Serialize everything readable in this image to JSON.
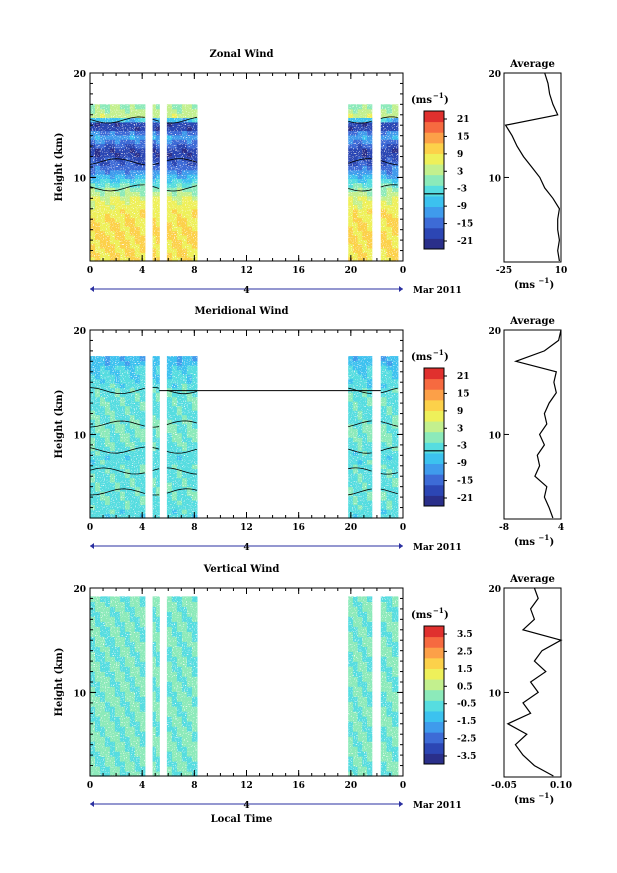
{
  "colors": {
    "bar": [
      "#2a2f8a",
      "#2c46b4",
      "#3d6bd6",
      "#3f9bec",
      "#3cc2ef",
      "#56dde0",
      "#8ceaba",
      "#c3f08e",
      "#eef05a",
      "#fcd14a",
      "#fca048",
      "#f66a40",
      "#e0302e"
    ],
    "contour": "#000000",
    "axis": "#000000"
  },
  "x_ticks": [
    "0",
    "4",
    "8",
    "12",
    "16",
    "20",
    "0"
  ],
  "date": {
    "day": "4",
    "month_year": "Mar 2011"
  },
  "x_label": "Local Time",
  "panels": [
    {
      "title": "Zonal Wind",
      "ylabel": "Height (km)",
      "y_ticks": [
        "10",
        "20"
      ],
      "unit": "(ms",
      "unit_sup": "−1",
      "unit_close": ")",
      "colorbar_labels": [
        "21",
        "15",
        "9",
        "3",
        "-3",
        "-9",
        "-15",
        "-21"
      ],
      "avg": {
        "title": "Average",
        "x_ticks": [
          "-25",
          "10"
        ],
        "unit": "(ms",
        "unit_sup": "−1",
        "unit_close": ")",
        "y_ticks": [
          "10",
          "20"
        ]
      }
    },
    {
      "title": "Meridional Wind",
      "ylabel": "Height (km)",
      "y_ticks": [
        "10",
        "20"
      ],
      "unit": "(ms",
      "unit_sup": "−1",
      "unit_close": ")",
      "colorbar_labels": [
        "21",
        "15",
        "9",
        "3",
        "-3",
        "-9",
        "-15",
        "-21"
      ],
      "avg": {
        "title": "Average",
        "x_ticks": [
          "-8",
          "4"
        ],
        "unit": "(ms",
        "unit_sup": "−1",
        "unit_close": ")",
        "y_ticks": [
          "10",
          "20"
        ]
      }
    },
    {
      "title": "Vertical Wind",
      "ylabel": "Height (km)",
      "y_ticks": [
        "10",
        "20"
      ],
      "unit": "(ms",
      "unit_sup": "−1",
      "unit_close": ")",
      "colorbar_labels": [
        "3.5",
        "2.5",
        "1.5",
        "0.5",
        "-0.5",
        "-1.5",
        "-2.5",
        "-3.5"
      ],
      "avg": {
        "title": "Average",
        "x_ticks": [
          "-0.05",
          "0.10"
        ],
        "unit": "(ms",
        "unit_sup": "−1",
        "unit_close": ")",
        "y_ticks": [
          "10",
          "20"
        ]
      }
    }
  ],
  "chart_data": [
    {
      "type": "heatmap",
      "title": "Zonal Wind",
      "xlabel": "Local Time",
      "ylabel": "Height (km)",
      "xlim": [
        0,
        24
      ],
      "ylim": [
        2,
        20
      ],
      "colorbar_range": [
        -24,
        24
      ],
      "data_intervals_hours": [
        [
          0,
          4.2
        ],
        [
          4.8,
          5.3
        ],
        [
          5.9,
          8.2
        ],
        [
          19.8,
          21.6
        ],
        [
          22.3,
          23.6
        ]
      ],
      "profile": {
        "height_km": [
          2,
          4,
          6,
          8,
          9,
          11,
          12.5,
          14,
          15,
          16,
          17
        ],
        "value_ms": [
          9,
          10,
          9,
          6,
          0,
          -15,
          -20,
          -10,
          -22,
          5,
          0
        ]
      }
    },
    {
      "type": "line",
      "title": "Average",
      "xlabel": "(ms-1)",
      "ylabel": "",
      "xlim": [
        -25,
        10
      ],
      "ylim": [
        2,
        20
      ],
      "y": [
        2,
        3,
        4,
        5,
        6,
        7,
        8,
        9,
        10,
        11,
        12,
        13,
        14,
        15,
        16,
        17,
        18,
        19,
        20
      ],
      "x": [
        9,
        8,
        9,
        8,
        8,
        9,
        5,
        0,
        -3,
        -8,
        -13,
        -17,
        -20,
        -24,
        8,
        5,
        3,
        2,
        0
      ]
    },
    {
      "type": "heatmap",
      "title": "Meridional Wind",
      "xlabel": "Local Time",
      "ylabel": "Height (km)",
      "xlim": [
        0,
        24
      ],
      "ylim": [
        2,
        20
      ],
      "colorbar_range": [
        -24,
        24
      ],
      "data_intervals_hours": [
        [
          0,
          4.2
        ],
        [
          4.8,
          5.3
        ],
        [
          5.9,
          8.2
        ],
        [
          19.8,
          21.6
        ],
        [
          22.3,
          23.6
        ]
      ],
      "profile": {
        "height_km": [
          2,
          4,
          6,
          8,
          10,
          12,
          14,
          16,
          17
        ],
        "value_ms": [
          -4,
          -3,
          -3,
          -4,
          -1,
          -3,
          -3,
          -5,
          -8
        ]
      }
    },
    {
      "type": "line",
      "title": "Average",
      "xlabel": "(ms-1)",
      "ylabel": "",
      "xlim": [
        -8,
        4
      ],
      "ylim": [
        2,
        20
      ],
      "y": [
        2,
        3,
        4,
        5,
        6,
        7,
        8,
        9,
        10,
        11,
        12,
        13,
        14,
        15,
        16,
        17,
        18,
        19,
        20
      ],
      "x": [
        2.3,
        1.5,
        0.5,
        1,
        -1.5,
        -0.5,
        -1,
        0.5,
        -0.5,
        1,
        0.5,
        1.5,
        3,
        2.5,
        3,
        -5.5,
        0.5,
        3.5,
        4
      ]
    },
    {
      "type": "heatmap",
      "title": "Vertical Wind",
      "xlabel": "Local Time",
      "ylabel": "Height (km)",
      "xlim": [
        0,
        24
      ],
      "ylim": [
        2,
        20
      ],
      "colorbar_range": [
        -4,
        4
      ],
      "data_intervals_hours": [
        [
          0,
          4.2
        ],
        [
          4.8,
          5.3
        ],
        [
          5.9,
          8.2
        ],
        [
          19.8,
          21.6
        ],
        [
          22.3,
          23.6
        ]
      ],
      "profile": {
        "height_km": [
          2,
          6,
          10,
          14,
          19
        ],
        "value_ms": [
          -0.3,
          -0.2,
          -0.2,
          -0.3,
          -0.2
        ]
      }
    },
    {
      "type": "line",
      "title": "Average",
      "xlabel": "(ms-1)",
      "ylabel": "",
      "xlim": [
        -0.05,
        0.1
      ],
      "ylim": [
        2,
        20
      ],
      "y": [
        2,
        3,
        4,
        5,
        6,
        7,
        8,
        9,
        10,
        11,
        12,
        13,
        14,
        15,
        16,
        17,
        18,
        19,
        20
      ],
      "x": [
        0.08,
        0.03,
        0.0,
        -0.02,
        0.01,
        -0.04,
        0.02,
        0.0,
        0.04,
        0.02,
        0.06,
        0.03,
        0.05,
        0.1,
        0.0,
        0.03,
        0.02,
        0.04,
        0.03
      ]
    }
  ]
}
